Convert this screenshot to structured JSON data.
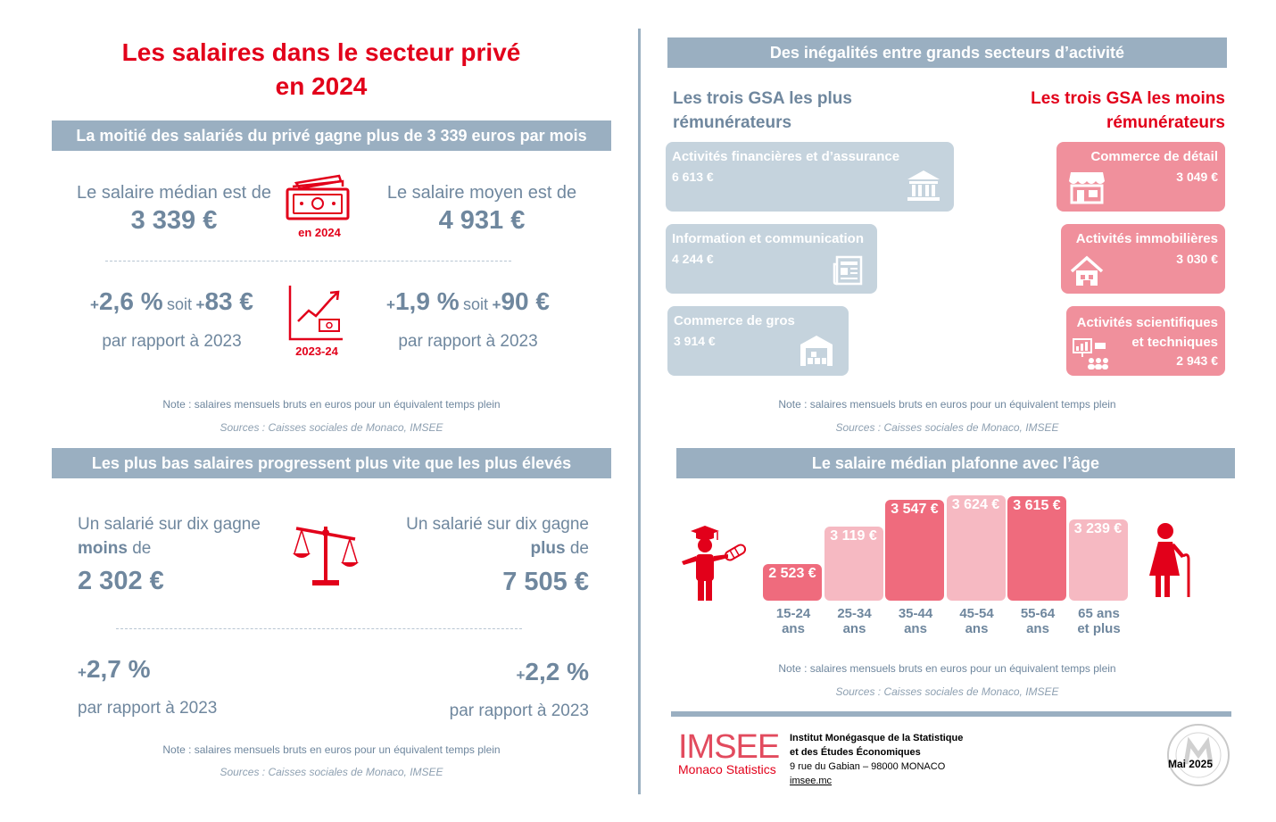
{
  "title_line1": "Les salaires dans le secteur privé",
  "title_line2": "en 2024",
  "s1": {
    "banner": "La moitié des salariés du privé gagne plus de 3 339 euros par mois",
    "median_label": "Le salaire médian est de",
    "median_value": "3 339 €",
    "mean_label": "Le salaire moyen est de",
    "mean_value": "4 931 €",
    "icon_caption": "en 2024",
    "median_pct": "2,6 %",
    "median_abs": "83 €",
    "mean_pct": "1,9 %",
    "mean_abs": "90 €",
    "soit": "soit",
    "plus": "+",
    "vs": "par rapport à 2023",
    "chart_caption": "2023-24",
    "note": "Note : salaires mensuels bruts en euros pour un équivalent temps plein",
    "source": "Sources : Caisses sociales de Monaco, IMSEE"
  },
  "s2": {
    "banner": "Les plus bas salaires progressent plus vite que les plus élevés",
    "low_l1": "Un salarié sur dix gagne",
    "low_bold": "moins",
    "low_de": " de",
    "low_value": "2 302 €",
    "high_l1": "Un salarié sur dix gagne",
    "high_bold": "plus",
    "high_de": " de",
    "high_value": "7 505 €",
    "low_pct": "2,7 %",
    "high_pct": "2,2 %",
    "plus": "+",
    "vs": "par rapport à 2023",
    "note": "Note : salaires mensuels bruts en euros pour un équivalent temps plein",
    "source": "Sources : Caisses sociales de Monaco, IMSEE"
  },
  "s3": {
    "banner": "Des inégalités entre grands secteurs d’activité",
    "top_h1": "Les trois GSA les plus",
    "top_h2": "rémunérateurs",
    "bottom_h1": "Les trois GSA les moins",
    "bottom_h2": "rémunérateurs",
    "top": [
      {
        "name": "Activités financières et d’assurance",
        "value": "6 613 €",
        "icon": "bank-icon"
      },
      {
        "name": "Information et communication",
        "value": "4 244 €",
        "icon": "newspaper-icon"
      },
      {
        "name": "Commerce de gros",
        "value": "3 914 €",
        "icon": "warehouse-icon"
      }
    ],
    "bottom": [
      {
        "name": "Commerce de détail",
        "value": "3 049 €",
        "icon": "shop-icon"
      },
      {
        "name": "Activités immobilières",
        "value": "3 030 €",
        "icon": "house-icon"
      },
      {
        "name1": "Activités scientifiques",
        "name2": "et techniques",
        "value": "2 943 €",
        "icon": "presentation-icon"
      }
    ],
    "note": "Note : salaires mensuels bruts en euros pour un équivalent temps plein",
    "source": "Sources : Caisses sociales de Monaco, IMSEE"
  },
  "s4": {
    "banner": "Le salaire médian plafonne avec l’âge",
    "note": "Note : salaires mensuels bruts en euros pour un équivalent temps plein",
    "source": "Sources : Caisses sociales de Monaco, IMSEE"
  },
  "chart_data": {
    "type": "bar",
    "categories": [
      "15-24 ans",
      "25-34 ans",
      "35-44 ans",
      "45-54 ans",
      "55-64 ans",
      "65 ans et plus"
    ],
    "category_lines": [
      [
        "15-24",
        "ans"
      ],
      [
        "25-34",
        "ans"
      ],
      [
        "35-44",
        "ans"
      ],
      [
        "45-54",
        "ans"
      ],
      [
        "55-64",
        "ans"
      ],
      [
        "65 ans",
        "et plus"
      ]
    ],
    "values": [
      2523,
      3119,
      3547,
      3624,
      3615,
      3239
    ],
    "value_labels": [
      "2 523 €",
      "3 119 €",
      "3 547 €",
      "3 624 €",
      "3 615 €",
      "3 239 €"
    ],
    "colors": [
      "#ef6b7d",
      "#f6b9c2",
      "#ef6b7d",
      "#f6b9c2",
      "#ef6b7d",
      "#f6b9c2"
    ],
    "title": "Le salaire médian plafonne avec l’âge",
    "xlabel": "",
    "ylabel": ""
  },
  "footer": {
    "logo_text": "IMSEE",
    "logo_sub": "Monaco Statistics",
    "org1": "Institut Monégasque de la Statistique",
    "org2": "et des Études Économiques",
    "address": "9 rue du Gabian – 98000 MONACO",
    "website": "imsee.mc",
    "date": "Mai 2025"
  }
}
